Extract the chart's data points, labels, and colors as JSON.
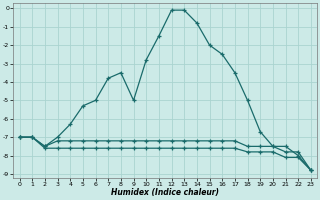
{
  "xlabel": "Humidex (Indice chaleur)",
  "background_color": "#cceae7",
  "grid_color": "#aad4d0",
  "line_color": "#1a6b6b",
  "xlim": [
    -0.5,
    23.5
  ],
  "ylim": [
    -9.2,
    0.3
  ],
  "yticks": [
    0,
    -1,
    -2,
    -3,
    -4,
    -5,
    -6,
    -7,
    -8,
    -9
  ],
  "xticks": [
    0,
    1,
    2,
    3,
    4,
    5,
    6,
    7,
    8,
    9,
    10,
    11,
    12,
    13,
    14,
    15,
    16,
    17,
    18,
    19,
    20,
    21,
    22,
    23
  ],
  "line1_x": [
    0,
    1,
    2,
    3,
    4,
    5,
    6,
    7,
    8,
    9,
    10,
    11,
    12,
    13,
    14,
    15,
    16,
    17,
    18,
    19,
    20,
    21,
    22,
    23
  ],
  "line1_y": [
    -7.0,
    -7.0,
    -7.5,
    -7.0,
    -6.3,
    -5.3,
    -5.0,
    -3.8,
    -3.5,
    -5.0,
    -2.8,
    -1.5,
    -0.1,
    -0.1,
    -0.8,
    -2.0,
    -2.5,
    -3.5,
    -5.0,
    -6.7,
    -7.5,
    -7.5,
    -8.0,
    -8.8
  ],
  "line2_x": [
    0,
    1,
    2,
    3,
    4,
    5,
    6,
    7,
    8,
    9,
    10,
    11,
    12,
    13,
    14,
    15,
    16,
    17,
    18,
    19,
    20,
    21,
    22,
    23
  ],
  "line2_y": [
    -7.0,
    -7.0,
    -7.5,
    -7.2,
    -7.2,
    -7.2,
    -7.2,
    -7.2,
    -7.2,
    -7.2,
    -7.2,
    -7.2,
    -7.2,
    -7.2,
    -7.2,
    -7.2,
    -7.2,
    -7.2,
    -7.5,
    -7.5,
    -7.5,
    -7.8,
    -7.8,
    -8.8
  ],
  "line3_x": [
    0,
    1,
    2,
    3,
    4,
    5,
    6,
    7,
    8,
    9,
    10,
    11,
    12,
    13,
    14,
    15,
    16,
    17,
    18,
    19,
    20,
    21,
    22,
    23
  ],
  "line3_y": [
    -7.0,
    -7.0,
    -7.6,
    -7.6,
    -7.6,
    -7.6,
    -7.6,
    -7.6,
    -7.6,
    -7.6,
    -7.6,
    -7.6,
    -7.6,
    -7.6,
    -7.6,
    -7.6,
    -7.6,
    -7.6,
    -7.8,
    -7.8,
    -7.8,
    -8.1,
    -8.1,
    -8.8
  ]
}
